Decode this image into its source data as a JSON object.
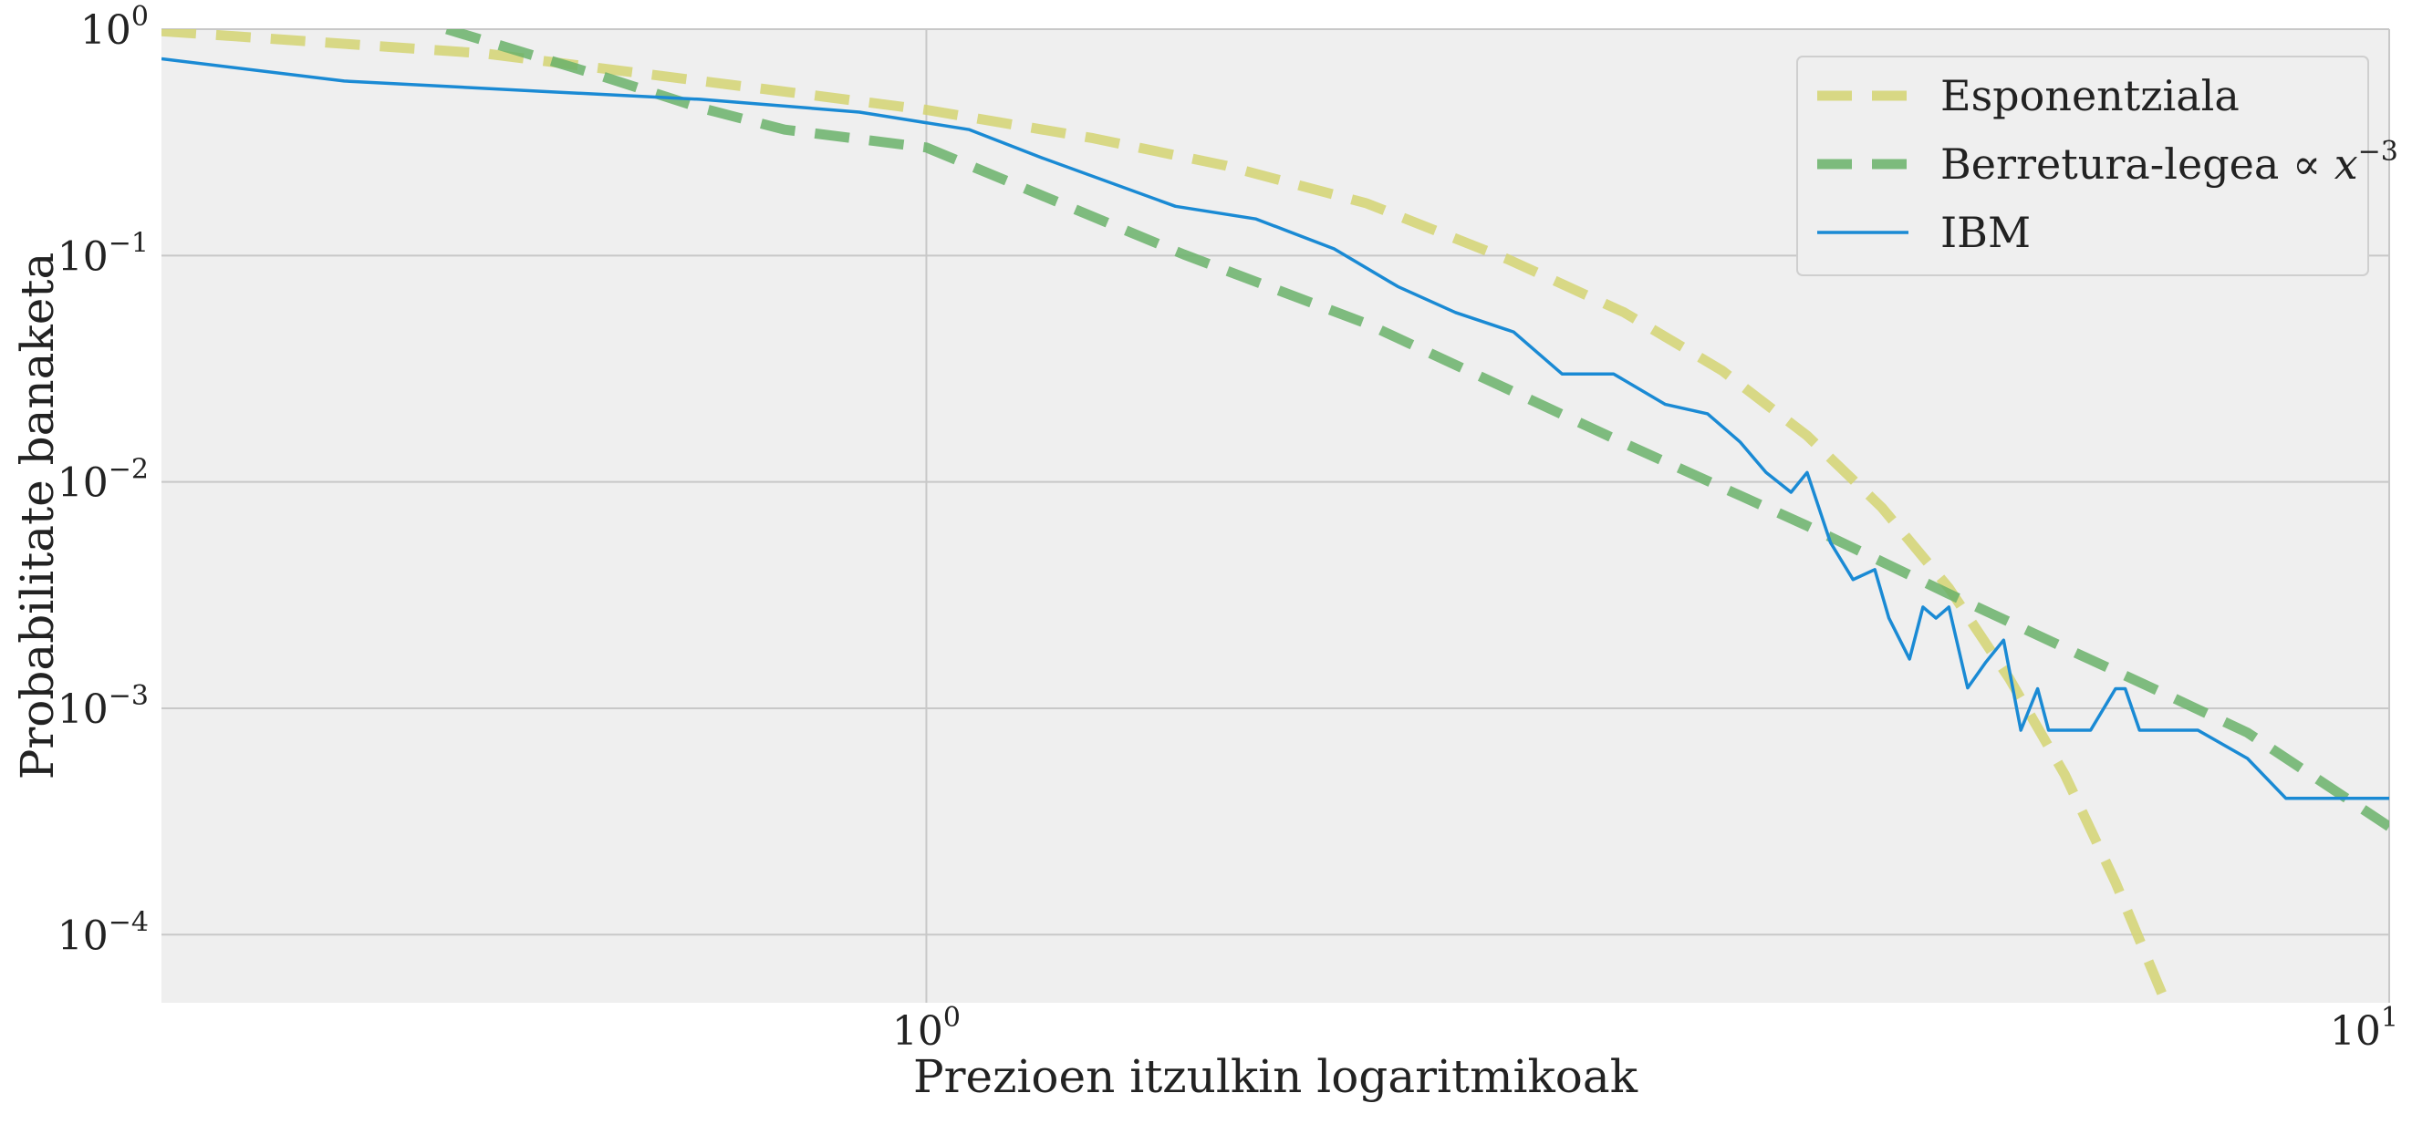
{
  "chart_data": {
    "type": "line",
    "title": "",
    "xlabel": "Prezioen itzulkin logaritmikoak",
    "ylabel": "Probabilitate banaketa",
    "x_scale": "log",
    "y_scale": "log",
    "xlim": [
      0.3,
      10
    ],
    "ylim": [
      5e-05,
      1
    ],
    "grid": true,
    "legend_position": "top-right",
    "background": "#efefef",
    "x_ticks": [
      {
        "value": 1,
        "base": "10",
        "exp": "0"
      },
      {
        "value": 10,
        "base": "10",
        "exp": "1"
      }
    ],
    "y_ticks": [
      {
        "value": 1,
        "base": "10",
        "exp": "0"
      },
      {
        "value": 0.1,
        "base": "10",
        "exp": "−1"
      },
      {
        "value": 0.01,
        "base": "10",
        "exp": "−2"
      },
      {
        "value": 0.001,
        "base": "10",
        "exp": "−3"
      },
      {
        "value": 0.0001,
        "base": "10",
        "exp": "−4"
      }
    ],
    "series": [
      {
        "name": "Esponentziala",
        "legend_label": "Esponentziala",
        "color": "#d4d472",
        "style": "dashed",
        "x": [
          0.3,
          0.5,
          0.8,
          1.0,
          1.3,
          1.6,
          2.0,
          2.5,
          3.0,
          3.5,
          4.0,
          4.5,
          5.0,
          5.5,
          6.0,
          6.5,
          7.0
        ],
        "y": [
          0.98,
          0.78,
          0.53,
          0.44,
          0.33,
          0.25,
          0.17,
          0.096,
          0.056,
          0.031,
          0.016,
          0.0077,
          0.0034,
          0.00135,
          0.00051,
          0.00017,
          5.4e-05
        ]
      },
      {
        "name": "Berretura-legea ∝ x^−3",
        "legend_label": "Berretura-legea ∝ ",
        "legend_math_base": "x",
        "legend_math_exp": "−3",
        "color": "#6ab26a",
        "style": "dashed",
        "x": [
          0.47,
          0.6,
          0.7,
          0.8,
          1.0,
          1.5,
          2.0,
          3.0,
          4.0,
          5.0,
          6.0,
          7.0,
          8.0,
          10.0
        ],
        "y": [
          1.0,
          0.62,
          0.45,
          0.36,
          0.3,
          0.101,
          0.05,
          0.0148,
          0.0064,
          0.0032,
          0.00185,
          0.00117,
          0.00078,
          0.0003
        ]
      },
      {
        "name": "IBM",
        "legend_label": "IBM",
        "color": "#1a8ad4",
        "style": "solid",
        "x": [
          0.3,
          0.4,
          0.55,
          0.7,
          0.9,
          1.07,
          1.2,
          1.48,
          1.68,
          1.9,
          2.1,
          2.3,
          2.52,
          2.72,
          2.95,
          3.2,
          3.42,
          3.6,
          3.75,
          3.9,
          4.0,
          4.15,
          4.3,
          4.45,
          4.55,
          4.7,
          4.8,
          4.9,
          5.0,
          5.15,
          5.3,
          5.45,
          5.6,
          5.75,
          5.85,
          6.0,
          6.1,
          6.25,
          6.5,
          6.6,
          6.75,
          7.0,
          7.4,
          8.0,
          8.5,
          9.0,
          10.0
        ],
        "y": [
          0.74,
          0.59,
          0.53,
          0.49,
          0.43,
          0.36,
          0.27,
          0.165,
          0.145,
          0.107,
          0.073,
          0.056,
          0.046,
          0.03,
          0.03,
          0.022,
          0.02,
          0.015,
          0.011,
          0.009,
          0.011,
          0.0054,
          0.0037,
          0.0041,
          0.0025,
          0.00165,
          0.0028,
          0.0025,
          0.0028,
          0.00123,
          0.0016,
          0.002,
          0.0008,
          0.00122,
          0.0008,
          0.0008,
          0.0008,
          0.0008,
          0.00122,
          0.00122,
          0.0008,
          0.0008,
          0.0008,
          0.0006,
          0.0004,
          0.0004,
          0.0004
        ]
      }
    ]
  }
}
